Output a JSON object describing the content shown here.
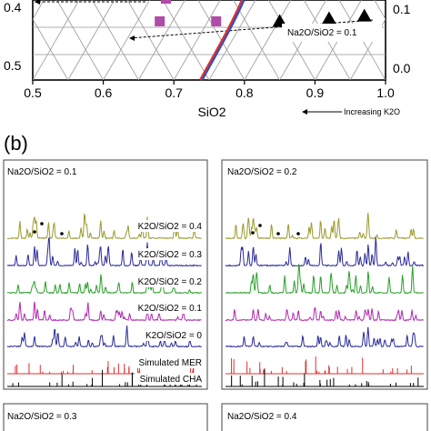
{
  "panel_b_label": "(b)",
  "chart_data": [
    {
      "type": "scatter",
      "subtype": "ternary-partial",
      "xlabel": "SiO2",
      "x_ticks": [
        "0.5",
        "0.6",
        "0.7",
        "0.8",
        "0.9",
        "1.0"
      ],
      "left_ticks": [
        "0.4",
        "0.5"
      ],
      "right_ticks": [
        "0.1",
        "0.0"
      ],
      "arrow_label": "Increasing K2O",
      "annotation": "Na2O/SiO2 = 0.1",
      "xlim": [
        0.5,
        1.0
      ],
      "colors": {
        "square": "#b04ba8",
        "triangle": "#000000",
        "boundary_red": "#e03030",
        "boundary_blue": "#3050c0"
      },
      "series": [
        {
          "marker": "square",
          "points": [
            [
              0.68,
              0.22
            ],
            [
              0.76,
              0.22
            ]
          ]
        },
        {
          "marker": "triangle",
          "points": [
            [
              0.85,
              0.22
            ],
            [
              0.92,
              0.23
            ],
            [
              0.97,
              0.24
            ]
          ]
        }
      ]
    },
    {
      "type": "line",
      "subtype": "xrd-stacked",
      "panels": [
        {
          "title": "Na2O/SiO2 = 0.1",
          "traces": [
            {
              "label": "K2O/SiO2 = 0.4",
              "color": "#9a9a2a"
            },
            {
              "label": "K2O/SiO2 = 0.3",
              "color": "#2a2a9a"
            },
            {
              "label": "K2O/SiO2 = 0.2",
              "color": "#2aa02a"
            },
            {
              "label": "K2O/SiO2 = 0.1",
              "color": "#b02ab0"
            },
            {
              "label": "K2O/SiO2 = 0",
              "color": "#2a2a9a"
            },
            {
              "label": "Simulated MER",
              "color": "#e03030"
            },
            {
              "label": "Simulated CHA",
              "color": "#000000"
            }
          ]
        },
        {
          "title": "Na2O/SiO2 = 0.2",
          "traces": [
            {
              "label": "",
              "color": "#9a9a2a"
            },
            {
              "label": "",
              "color": "#2a2a9a"
            },
            {
              "label": "",
              "color": "#2aa02a"
            },
            {
              "label": "",
              "color": "#b02ab0"
            },
            {
              "label": "",
              "color": "#2a2a9a"
            },
            {
              "label": "",
              "color": "#e03030"
            },
            {
              "label": "",
              "color": "#000000"
            }
          ]
        },
        {
          "title": "Na2O/SiO2 = 0.3",
          "traces": []
        },
        {
          "title": "Na2O/SiO2 = 0.4",
          "traces": []
        }
      ]
    }
  ]
}
